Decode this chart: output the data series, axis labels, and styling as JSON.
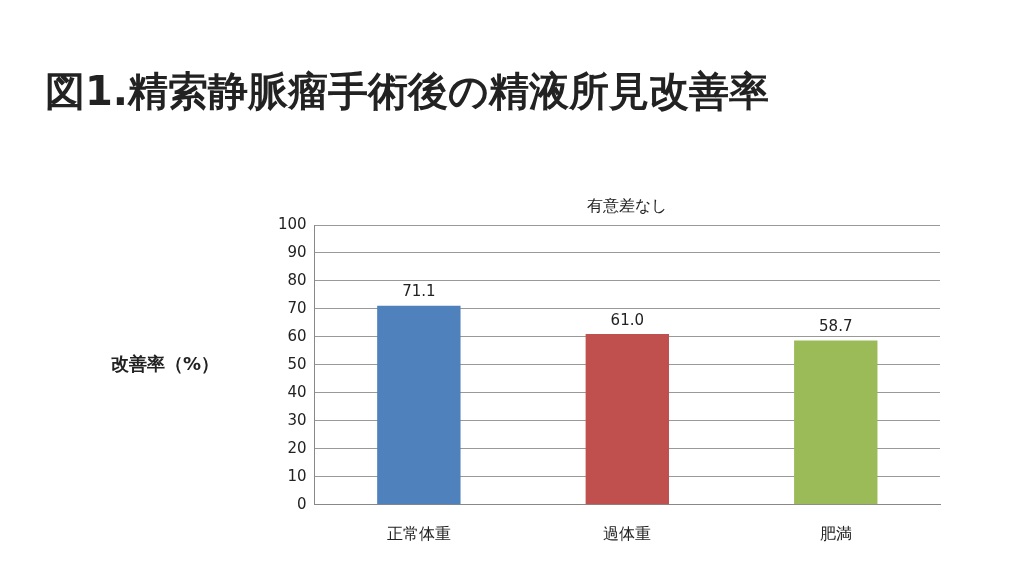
{
  "chart_data": {
    "type": "bar",
    "title": "図1.精索静脈瘤手術後の精液所見改善率",
    "subtitle": "有意差なし",
    "ylabel": "改善率（%）",
    "categories": [
      "正常体重",
      "過体重",
      "肥満"
    ],
    "values": [
      71.1,
      61.0,
      58.7
    ],
    "value_labels": [
      "71.1",
      "61.0",
      "58.7"
    ],
    "colors": [
      "#4f81bd",
      "#c0504d",
      "#9bbb59"
    ],
    "ylim": [
      0,
      100
    ],
    "yticks": [
      0,
      10,
      20,
      30,
      40,
      50,
      60,
      70,
      80,
      90,
      100
    ],
    "grid": "y",
    "legend": false
  }
}
